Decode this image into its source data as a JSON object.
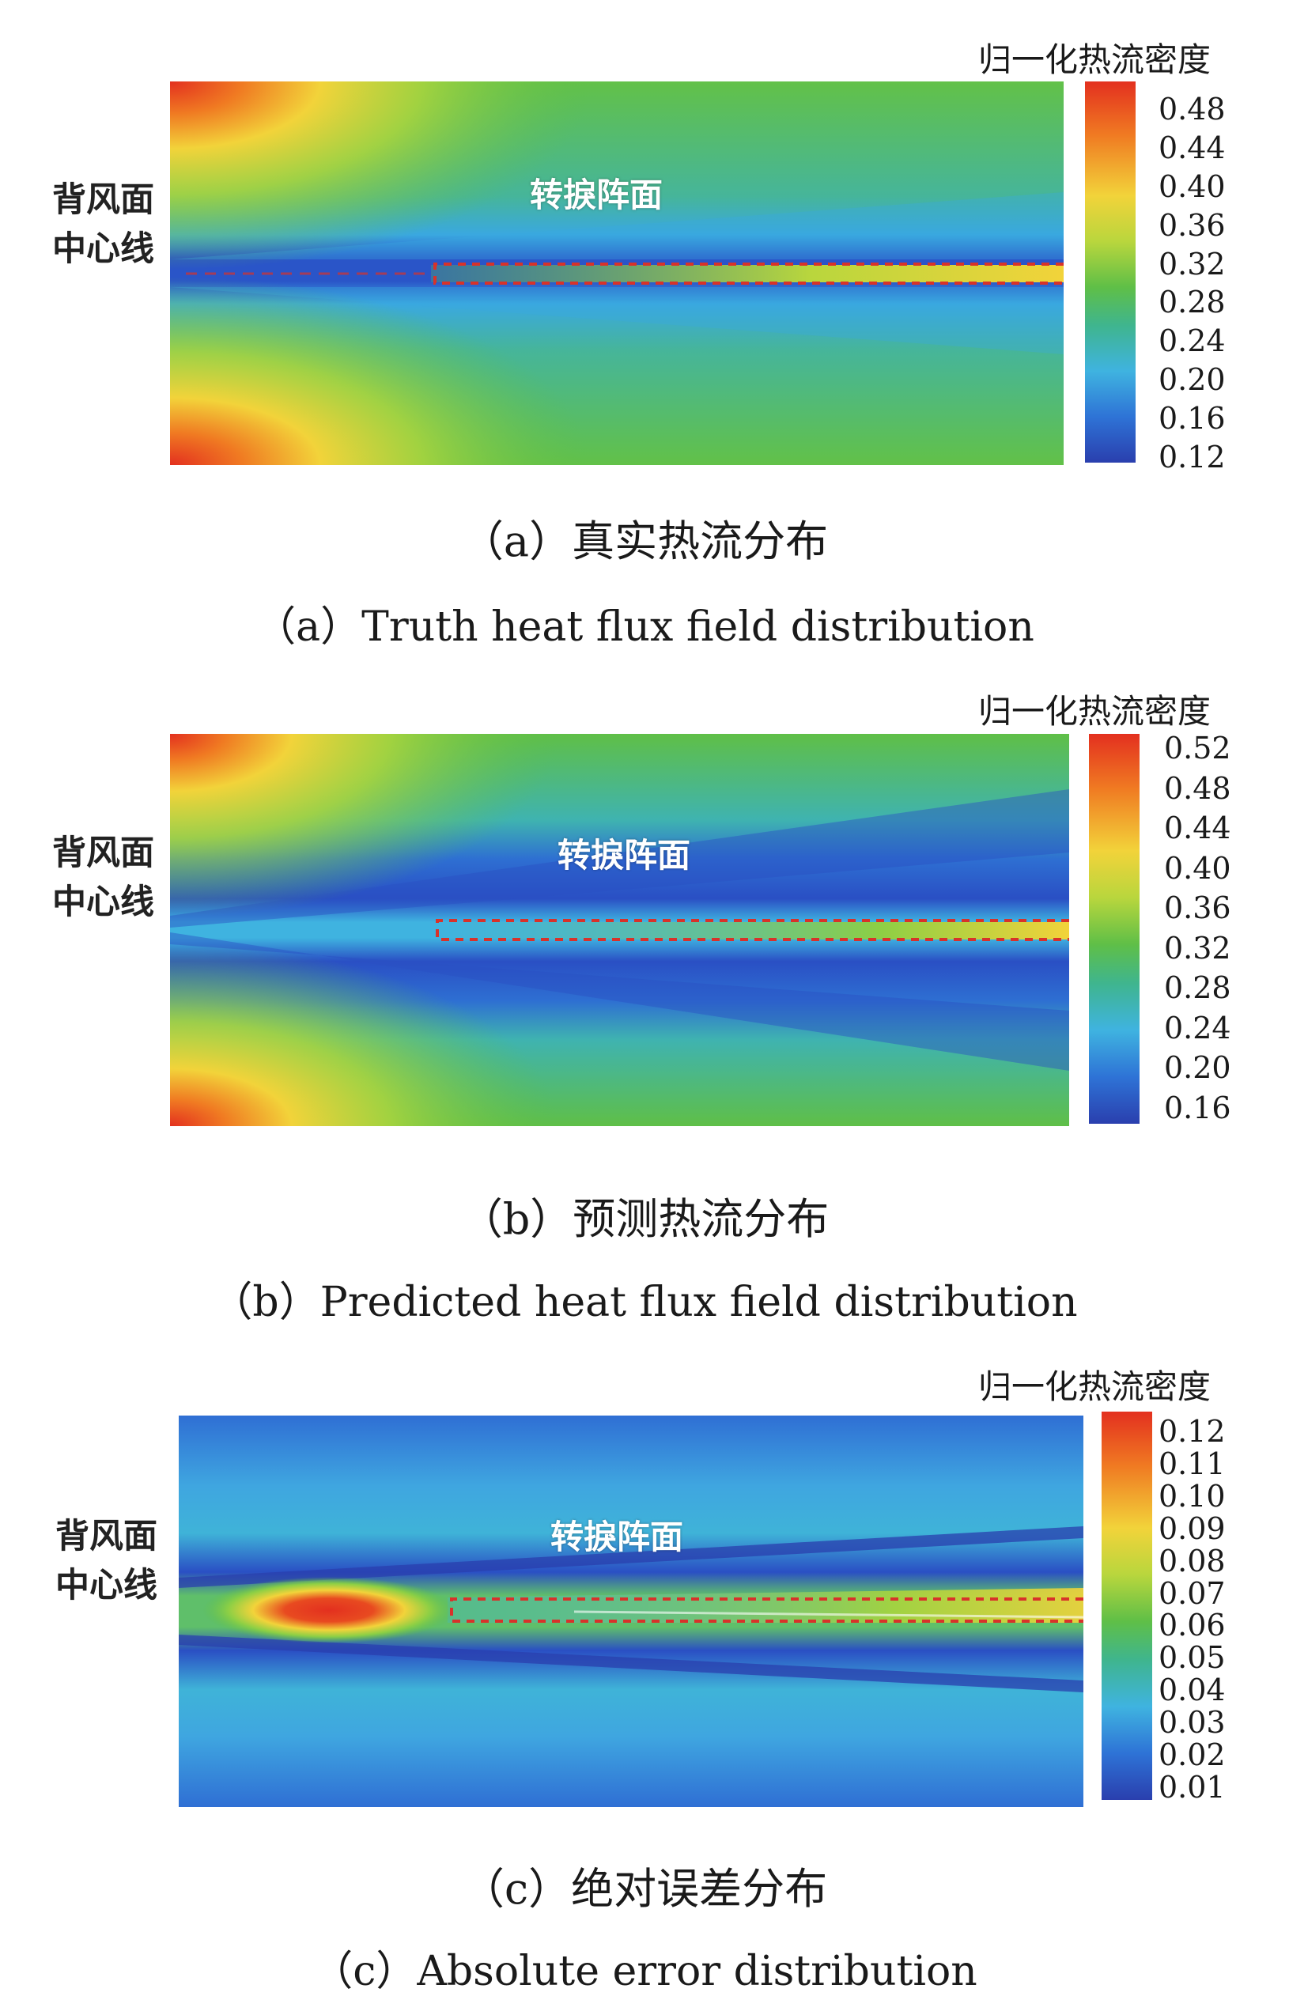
{
  "chart_data": [
    {
      "type": "heatmap",
      "caption_cn": "（a）真实热流分布",
      "caption_en": "（a）Truth heat flux field distribution",
      "side_label": [
        "背风面",
        "中心线"
      ],
      "region_label": "转捩阵面",
      "colorbar": {
        "title": "归一化热流密度",
        "ticks": [
          "0.48",
          "0.44",
          "0.40",
          "0.36",
          "0.32",
          "0.28",
          "0.24",
          "0.20",
          "0.16",
          "0.12"
        ],
        "range": [
          0.12,
          0.48
        ]
      }
    },
    {
      "type": "heatmap",
      "caption_cn": "（b）预测热流分布",
      "caption_en": "（b）Predicted heat flux field distribution",
      "side_label": [
        "背风面",
        "中心线"
      ],
      "region_label": "转捩阵面",
      "colorbar": {
        "title": "归一化热流密度",
        "ticks": [
          "0.52",
          "0.48",
          "0.44",
          "0.40",
          "0.36",
          "0.32",
          "0.28",
          "0.24",
          "0.20",
          "0.16"
        ],
        "range": [
          0.16,
          0.52
        ]
      }
    },
    {
      "type": "heatmap",
      "caption_cn": "（c）绝对误差分布",
      "caption_en": "（c）Absolute error distribution",
      "side_label": [
        "背风面",
        "中心线"
      ],
      "region_label": "转捩阵面",
      "colorbar": {
        "title": "归一化热流密度",
        "ticks": [
          "0.12",
          "0.11",
          "0.10",
          "0.09",
          "0.08",
          "0.07",
          "0.06",
          "0.05",
          "0.04",
          "0.03",
          "0.02",
          "0.01"
        ],
        "range": [
          0.01,
          0.12
        ]
      }
    }
  ],
  "colors": {
    "red": "#e3301f",
    "orange": "#f07a22",
    "yellow": "#f2d33a",
    "green": "#5fbf47",
    "cyan": "#3fb3e0",
    "blue": "#2a3fae",
    "front_line": "#d8322a"
  }
}
